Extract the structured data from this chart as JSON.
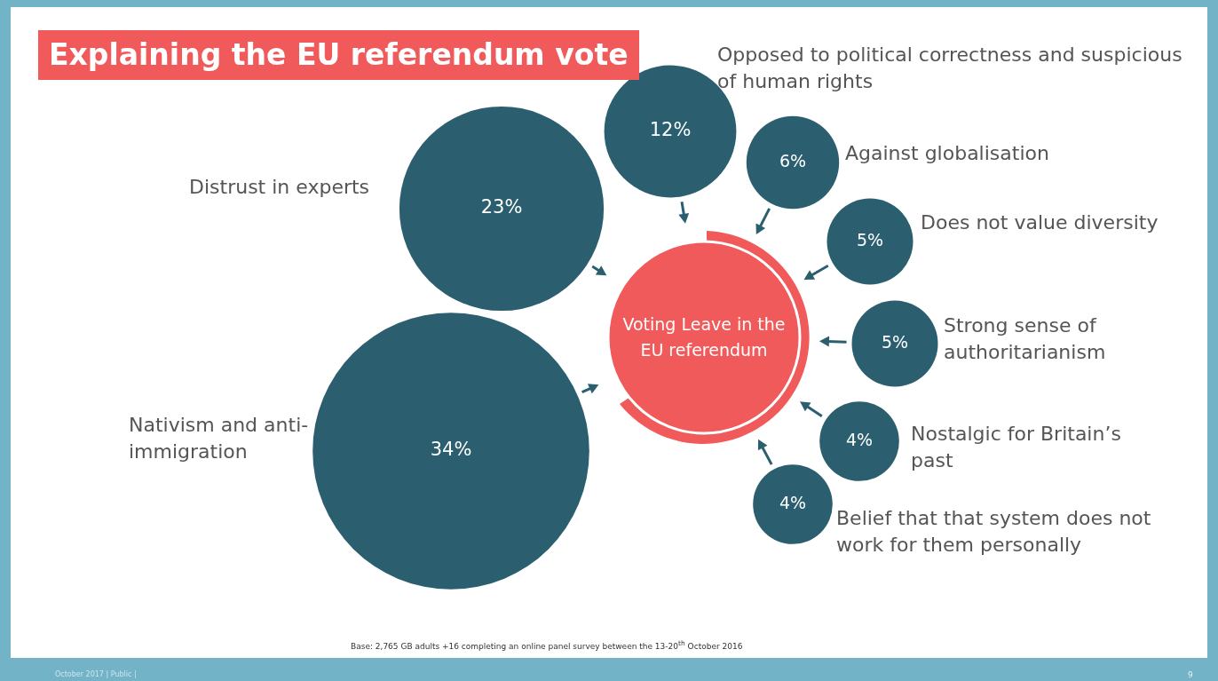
{
  "chart_data": {
    "type": "other",
    "title": "Explaining the EU referendum vote",
    "categories": [
      "Distrust in experts",
      "Nativism and anti-immigration",
      "Opposed to political correctness and suspicious of human rights",
      "Against globalisation",
      "Does not value diversity",
      "Strong sense of authoritarianism",
      "Nostalgic for Britain’s past",
      "Belief that that system does not work for them personally"
    ],
    "values": [
      23,
      34,
      12,
      6,
      5,
      5,
      4,
      4
    ],
    "value_labels": [
      "23%",
      "34%",
      "12%",
      "6%",
      "5%",
      "5%",
      "4%",
      "4%"
    ],
    "color": "#2b5f70",
    "annotations": [
      "Voting Leave in the EU referendum",
      "Base: 2,765 GB  adults +16  completing an online panel survey between the 13-20$^{th}$ October 2016",
      "October 2017 |  Public |",
      "9"
    ]
  }
}
